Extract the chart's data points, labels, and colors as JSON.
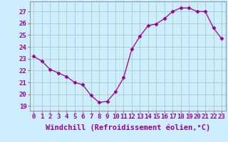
{
  "x": [
    0,
    1,
    2,
    3,
    4,
    5,
    6,
    7,
    8,
    9,
    10,
    11,
    12,
    13,
    14,
    15,
    16,
    17,
    18,
    19,
    20,
    21,
    22,
    23
  ],
  "y": [
    23.2,
    22.8,
    22.1,
    21.8,
    21.5,
    21.0,
    20.8,
    19.9,
    19.3,
    19.4,
    20.2,
    21.4,
    23.8,
    24.9,
    25.8,
    25.95,
    26.4,
    27.0,
    27.3,
    27.3,
    27.0,
    27.0,
    25.6,
    24.7
  ],
  "line_color": "#990099",
  "marker": "D",
  "marker_size": 2.5,
  "bg_color": "#cceeff",
  "grid_color": "#aaccbb",
  "ylabel_ticks": [
    19,
    20,
    21,
    22,
    23,
    24,
    25,
    26,
    27
  ],
  "xlabel": "Windchill (Refroidissement éolien,°C)",
  "xlim": [
    -0.5,
    23.5
  ],
  "ylim": [
    18.6,
    27.85
  ],
  "tick_color": "#990099",
  "tick_fontsize": 6.5,
  "xlabel_fontsize": 7.5,
  "spine_color": "#999999"
}
